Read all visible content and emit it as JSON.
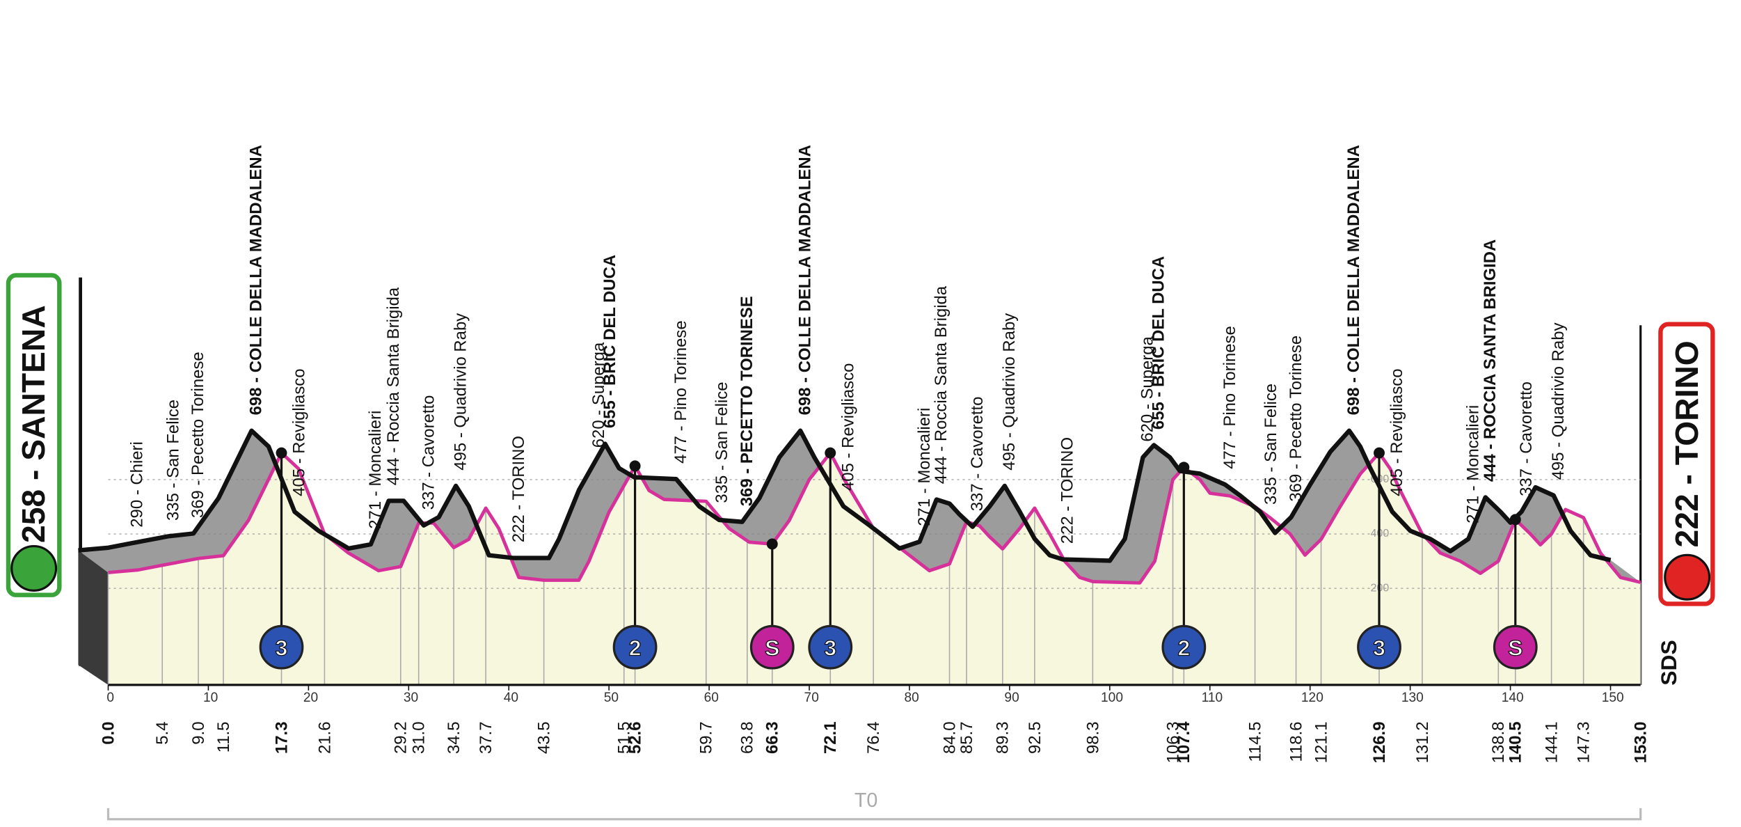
{
  "chart_data": {
    "type": "elevation-profile",
    "start_label": "258 - SANTENA",
    "finish_label": "222 - TORINO",
    "bracket_label": "T0",
    "logo": "SDS",
    "xlim": [
      0,
      153
    ],
    "ylim": [
      -155,
      1000
    ],
    "xticks": [
      0,
      10,
      20,
      30,
      40,
      50,
      60,
      70,
      80,
      90,
      100,
      110,
      120,
      130,
      140,
      150
    ],
    "yticks": [
      200,
      400,
      600
    ],
    "grid": true,
    "line_color": "#d6309a",
    "front_color": "#111111",
    "side_color": "#9c9c9c",
    "area_color": "#f7f7de",
    "x": [
      0,
      3,
      5.4,
      9,
      11.5,
      14,
      17.3,
      19,
      21.6,
      24,
      27,
      29.2,
      31,
      32.5,
      34.5,
      36,
      37.7,
      39,
      40,
      41,
      43.5,
      47,
      48,
      50,
      52.6,
      54,
      55.5,
      59.7,
      62,
      64,
      66.3,
      68,
      70,
      72.1,
      73.5,
      76.4,
      79,
      82,
      84,
      85.7,
      87,
      88,
      89.3,
      91,
      92.5,
      94,
      95.5,
      97,
      98.3,
      103,
      104.5,
      106.3,
      107.4,
      109,
      110,
      112,
      114.5,
      116,
      118,
      119.5,
      121.1,
      123,
      125,
      126.9,
      128,
      129,
      131.2,
      133,
      135,
      137,
      138.8,
      140.5,
      142,
      143,
      144.1,
      145.5,
      147.3,
      149,
      151,
      153
    ],
    "values": [
      258,
      268,
      285,
      310,
      320,
      450,
      698,
      640,
      400,
      330,
      265,
      280,
      440,
      440,
      350,
      380,
      495,
      420,
      330,
      240,
      230,
      230,
      300,
      480,
      650,
      560,
      527,
      520,
      420,
      370,
      363,
      450,
      600,
      698,
      600,
      420,
      350,
      265,
      290,
      445,
      430,
      390,
      345,
      420,
      495,
      400,
      300,
      240,
      225,
      220,
      300,
      600,
      645,
      600,
      550,
      540,
      500,
      460,
      400,
      322,
      380,
      500,
      620,
      698,
      640,
      560,
      400,
      330,
      300,
      255,
      300,
      453,
      400,
      360,
      400,
      490,
      460,
      330,
      240,
      222
    ],
    "markers": [
      {
        "value": 0,
        "label": "0.0"
      },
      5.4,
      {
        "value": 9,
        "label": "9.0"
      },
      11.5,
      17.3,
      21.6,
      29.2,
      {
        "value": 31,
        "label": "31.0"
      },
      34.5,
      37.7,
      43.5,
      51.5,
      52.6,
      59.7,
      63.8,
      66.3,
      72.1,
      76.4,
      {
        "value": 84,
        "label": "84.0"
      },
      85.7,
      89.3,
      92.5,
      98.3,
      106.3,
      107.4,
      114.5,
      118.6,
      121.1,
      126.9,
      131.2,
      138.8,
      140.5,
      144.1,
      147.3,
      {
        "value": 153,
        "label": "153.0"
      }
    ],
    "marker_names": [
      null,
      "290 - Chieri",
      "335 - San Felice",
      "369 - Pecetto Torinese",
      "698 - COLLE DELLA MADDALENA",
      "405 - Revigliasco",
      "271 - Moncalieri",
      "444 - Roccia Santa Brigida",
      "337 - Cavoretto",
      "495 - Quadrivio Raby",
      "222 - TORINO",
      "620 - Superga",
      "655 - BRIC DEL DUCA",
      "477 - Pino Torinese",
      "335 - San Felice",
      "369 - PECETTO TORINESE",
      "698 - COLLE DELLA MADDALENA",
      "405 - Revigliasco",
      "271 - Moncalieri",
      "444 - Roccia Santa Brigida",
      "337 - Cavoretto",
      "495 - Quadrivio Raby",
      "222 - TORINO",
      "620 - Superga",
      "655 - BRIC DEL DUCA",
      "477 - Pino Torinese",
      "335 - San Felice",
      "369 - Pecetto Torinese",
      "698 - COLLE DELLA MADDALENA",
      "405 - Revigliasco",
      "271 - Moncalieri",
      "444 - ROCCIA SANTA BRIGIDA",
      "337 - Cavoretto",
      "495 - Quadrivio Raby",
      null
    ],
    "marker_bold": [
      true,
      false,
      false,
      false,
      true,
      false,
      false,
      false,
      false,
      false,
      false,
      false,
      true,
      false,
      false,
      true,
      true,
      false,
      false,
      false,
      false,
      false,
      false,
      false,
      true,
      false,
      false,
      false,
      true,
      false,
      false,
      true,
      false,
      false,
      true
    ],
    "classifications": [
      {
        "km": 17.3,
        "label": "3",
        "color": "#2b52b0"
      },
      {
        "km": 52.6,
        "label": "2",
        "color": "#2b52b0"
      },
      {
        "km": 66.3,
        "label": "S",
        "color": "#c2239a"
      },
      {
        "km": 72.1,
        "label": "3",
        "color": "#2b52b0"
      },
      {
        "km": 107.4,
        "label": "2",
        "color": "#2b52b0"
      },
      {
        "km": 126.9,
        "label": "3",
        "color": "#2b52b0"
      },
      {
        "km": 140.5,
        "label": "S",
        "color": "#c2239a"
      }
    ]
  }
}
